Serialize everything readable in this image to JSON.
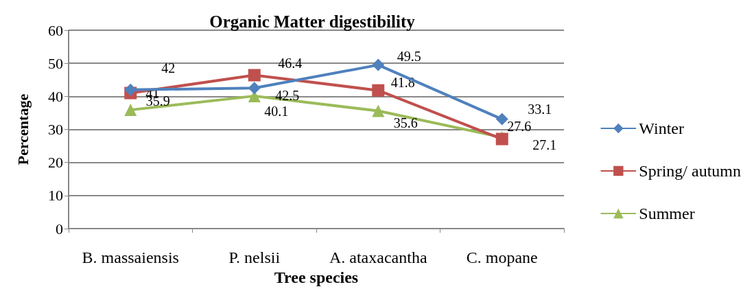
{
  "chart_data": {
    "type": "line",
    "title": "Organic Matter digestibility",
    "xlabel": "Tree species",
    "ylabel": "Percentage",
    "categories": [
      "B. massaiensis",
      "P. nelsii",
      "A. ataxacantha",
      "C. mopane"
    ],
    "series": [
      {
        "name": "Winter",
        "color": "#4f81bd",
        "marker": "diamond",
        "values": [
          42,
          42.5,
          49.5,
          33.1
        ]
      },
      {
        "name": "Spring/ autumn",
        "color": "#c0504d",
        "marker": "square",
        "values": [
          41,
          46.4,
          41.8,
          27.1
        ]
      },
      {
        "name": "Summer",
        "color": "#9bbb59",
        "marker": "triangle",
        "values": [
          35.9,
          40.1,
          35.6,
          27.6
        ]
      }
    ],
    "ylim": [
      0,
      60
    ],
    "yticks": [
      0,
      10,
      20,
      30,
      40,
      50,
      60
    ],
    "grid": "y",
    "legend": "right",
    "data_labels": true
  }
}
